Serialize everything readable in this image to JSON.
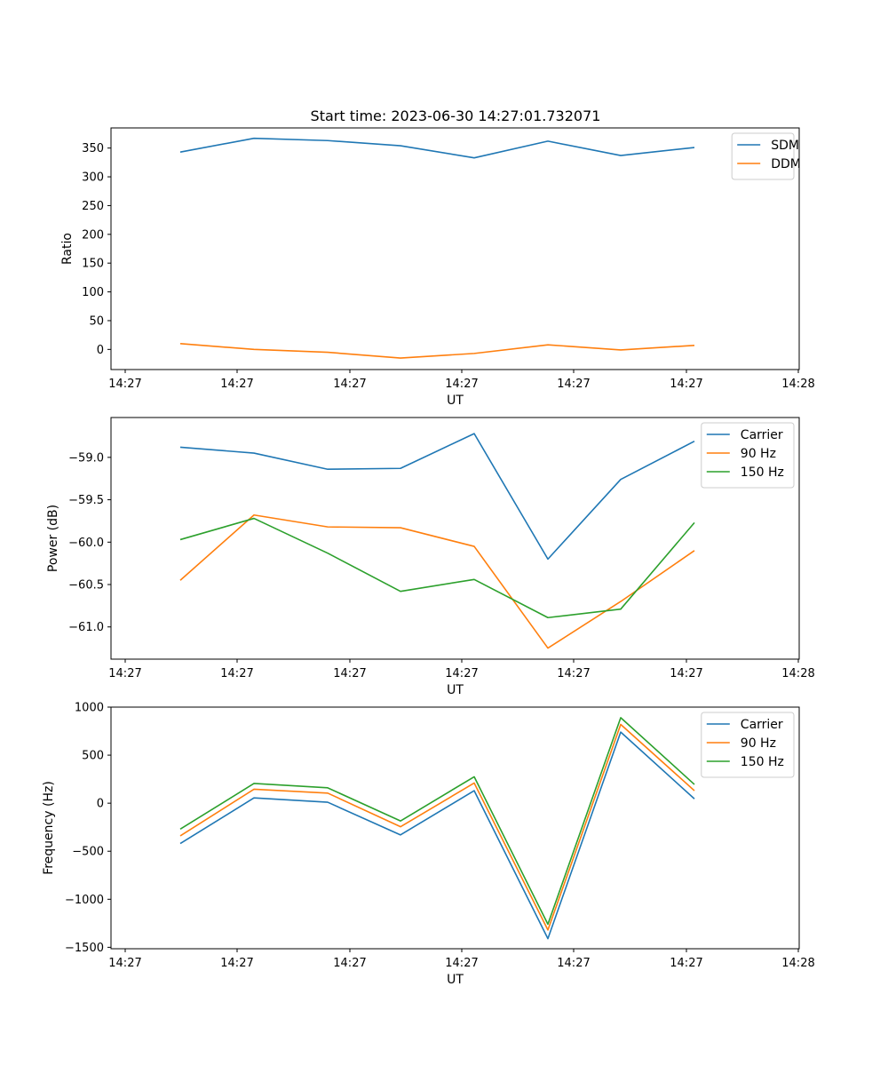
{
  "chart_data": [
    {
      "type": "line",
      "title": "Start time: 2023-06-30 14:27:01.732071",
      "xlabel": "UT",
      "ylabel": "Ratio",
      "x_ticks": [
        "14:27",
        "14:27",
        "14:27",
        "14:27",
        "14:27",
        "14:27",
        "14:27",
        "14:28"
      ],
      "y_ticks": [
        0,
        50,
        100,
        150,
        200,
        250,
        300,
        350
      ],
      "ylim": [
        -35,
        385
      ],
      "legend_position": "top-right",
      "series": [
        {
          "name": "SDM",
          "color": "#1f77b4",
          "values": [
            343,
            367,
            363,
            354,
            333,
            362,
            337,
            351
          ]
        },
        {
          "name": "DDM",
          "color": "#ff7f0e",
          "values": [
            10,
            0,
            -5,
            -15,
            -7,
            8,
            -1,
            7
          ]
        }
      ]
    },
    {
      "type": "line",
      "title": "",
      "xlabel": "UT",
      "ylabel": "Power (dB)",
      "x_ticks": [
        "14:27",
        "14:27",
        "14:27",
        "14:27",
        "14:27",
        "14:27",
        "14:27",
        "14:28"
      ],
      "y_ticks": [
        "-59.0",
        "-59.5",
        "-60.0",
        "-60.5",
        "-61.0"
      ],
      "ylim": [
        -61.38,
        -58.53
      ],
      "legend_position": "top-right",
      "series": [
        {
          "name": "Carrier",
          "color": "#1f77b4",
          "values": [
            -58.88,
            -58.95,
            -59.14,
            -59.13,
            -58.72,
            -60.2,
            -59.26,
            -58.81
          ]
        },
        {
          "name": "90 Hz",
          "color": "#ff7f0e",
          "values": [
            -60.45,
            -59.68,
            -59.82,
            -59.83,
            -60.05,
            -61.25,
            -60.7,
            -60.1
          ]
        },
        {
          "name": "150 Hz",
          "color": "#2ca02c",
          "values": [
            -59.97,
            -59.72,
            -60.13,
            -60.58,
            -60.44,
            -60.89,
            -60.79,
            -59.77
          ]
        }
      ]
    },
    {
      "type": "line",
      "title": "",
      "xlabel": "UT",
      "ylabel": "Frequency (Hz)",
      "x_ticks": [
        "14:27",
        "14:27",
        "14:27",
        "14:27",
        "14:27",
        "14:27",
        "14:27",
        "14:28"
      ],
      "y_ticks": [
        1000,
        500,
        0,
        -500,
        -1000,
        -1500
      ],
      "ylim": [
        -1515,
        1000
      ],
      "legend_position": "top-right",
      "series": [
        {
          "name": "Carrier",
          "color": "#1f77b4",
          "values": [
            -420,
            55,
            10,
            -330,
            130,
            -1410,
            740,
            45
          ]
        },
        {
          "name": "90 Hz",
          "color": "#ff7f0e",
          "values": [
            -340,
            145,
            105,
            -245,
            210,
            -1320,
            820,
            130
          ]
        },
        {
          "name": "150 Hz",
          "color": "#2ca02c",
          "values": [
            -270,
            205,
            160,
            -185,
            275,
            -1260,
            890,
            195
          ]
        }
      ]
    }
  ]
}
